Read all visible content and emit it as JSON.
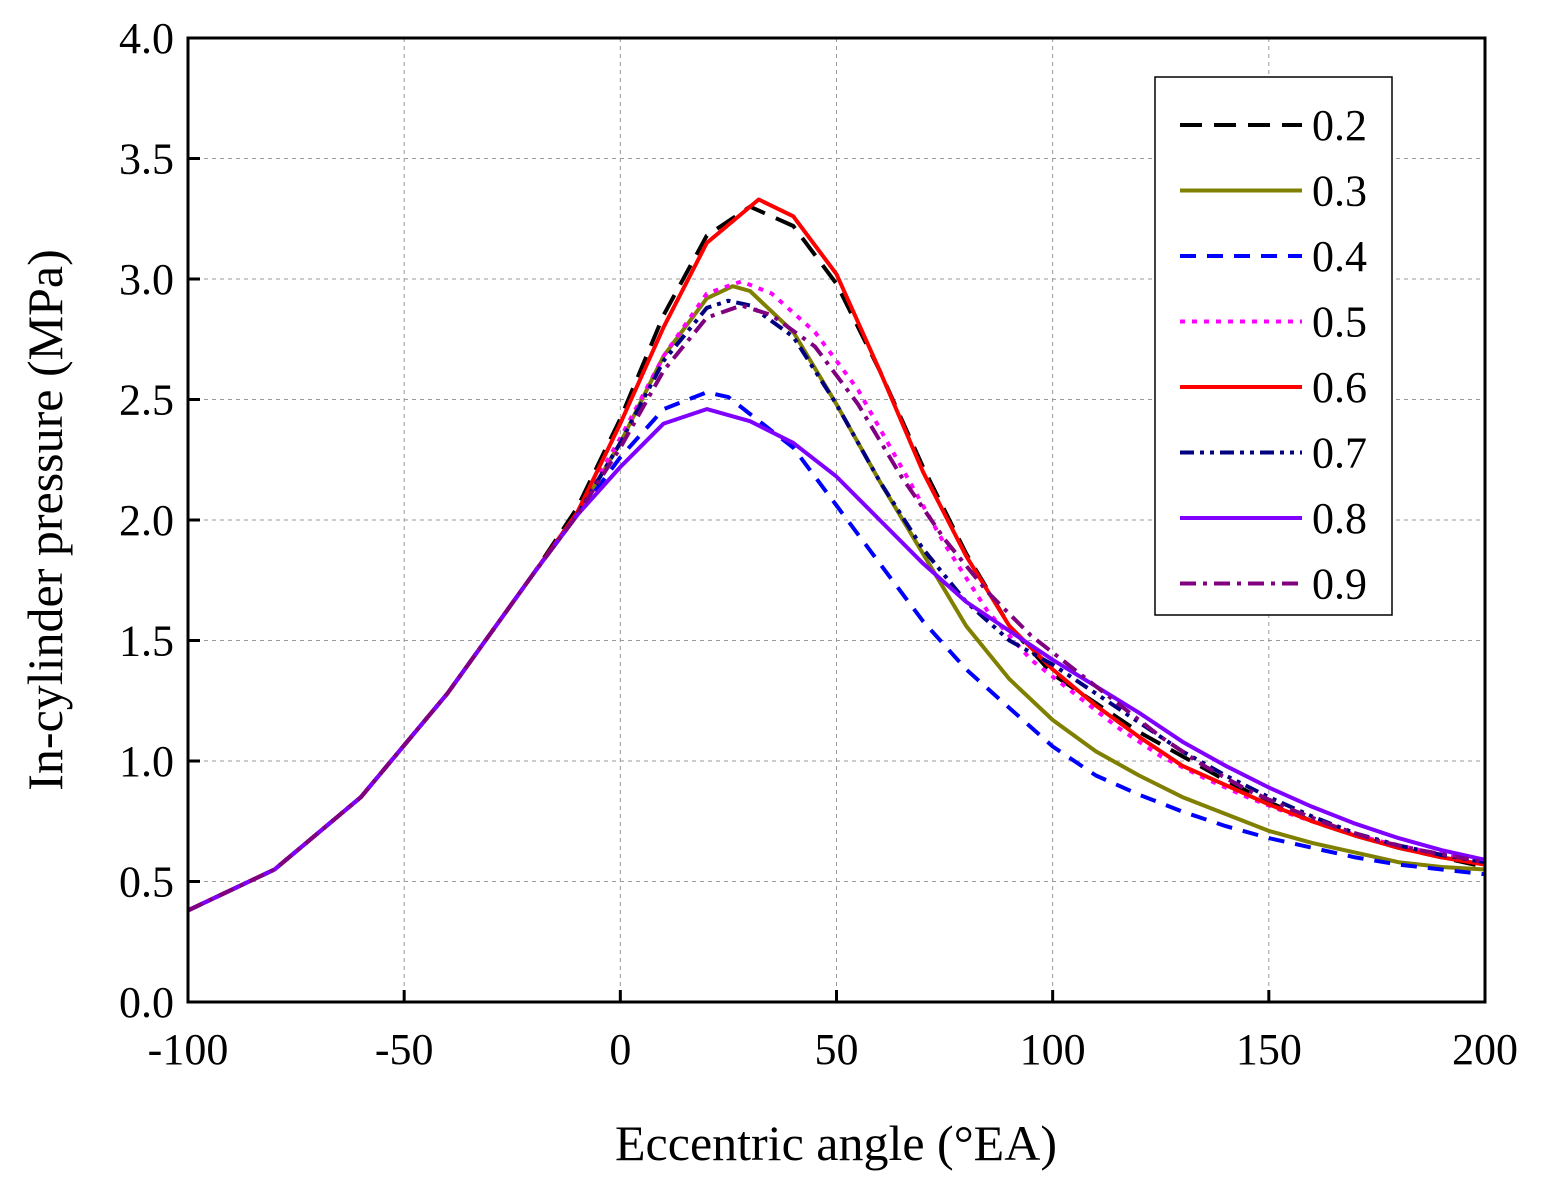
{
  "chart_data": {
    "type": "line",
    "title": "",
    "xlabel": "Eccentric angle (°EA)",
    "ylabel": "In-cylinder pressure (MPa)",
    "xlim": [
      -100,
      200
    ],
    "ylim": [
      0.0,
      4.0
    ],
    "xticks": [
      -100,
      -50,
      0,
      50,
      100,
      150,
      200
    ],
    "xtick_labels": [
      "-100",
      "-50",
      "0",
      "50",
      "100",
      "150",
      "200"
    ],
    "yticks": [
      0.0,
      0.5,
      1.0,
      1.5,
      2.0,
      2.5,
      3.0,
      3.5,
      4.0
    ],
    "ytick_labels": [
      "0.0",
      "0.5",
      "1.0",
      "1.5",
      "2.0",
      "2.5",
      "3.0",
      "3.5",
      "4.0"
    ],
    "grid": true,
    "legend_position": "top-right",
    "series": [
      {
        "name": "0.2",
        "color": "#000000",
        "dash": "long-dash",
        "points": [
          [
            -100,
            0.38
          ],
          [
            -80,
            0.55
          ],
          [
            -60,
            0.85
          ],
          [
            -40,
            1.28
          ],
          [
            -20,
            1.78
          ],
          [
            -10,
            2.05
          ],
          [
            0,
            2.42
          ],
          [
            10,
            2.85
          ],
          [
            20,
            3.18
          ],
          [
            30,
            3.3
          ],
          [
            40,
            3.22
          ],
          [
            50,
            2.98
          ],
          [
            60,
            2.62
          ],
          [
            70,
            2.22
          ],
          [
            80,
            1.86
          ],
          [
            90,
            1.56
          ],
          [
            100,
            1.36
          ],
          [
            110,
            1.24
          ],
          [
            120,
            1.12
          ],
          [
            130,
            1.02
          ],
          [
            140,
            0.92
          ],
          [
            150,
            0.83
          ],
          [
            160,
            0.75
          ],
          [
            170,
            0.69
          ],
          [
            180,
            0.64
          ],
          [
            190,
            0.6
          ],
          [
            200,
            0.56
          ]
        ]
      },
      {
        "name": "0.3",
        "color": "#808000",
        "dash": "solid",
        "points": [
          [
            -100,
            0.38
          ],
          [
            -80,
            0.55
          ],
          [
            -60,
            0.85
          ],
          [
            -40,
            1.28
          ],
          [
            -20,
            1.78
          ],
          [
            -10,
            2.02
          ],
          [
            0,
            2.32
          ],
          [
            10,
            2.68
          ],
          [
            20,
            2.92
          ],
          [
            26,
            2.97
          ],
          [
            30,
            2.95
          ],
          [
            40,
            2.78
          ],
          [
            50,
            2.48
          ],
          [
            60,
            2.16
          ],
          [
            70,
            1.86
          ],
          [
            80,
            1.56
          ],
          [
            90,
            1.34
          ],
          [
            100,
            1.17
          ],
          [
            110,
            1.04
          ],
          [
            120,
            0.94
          ],
          [
            130,
            0.85
          ],
          [
            140,
            0.78
          ],
          [
            150,
            0.71
          ],
          [
            160,
            0.66
          ],
          [
            170,
            0.62
          ],
          [
            180,
            0.58
          ],
          [
            190,
            0.56
          ],
          [
            200,
            0.55
          ]
        ]
      },
      {
        "name": "0.4",
        "color": "#0000ff",
        "dash": "dash",
        "points": [
          [
            -100,
            0.38
          ],
          [
            -80,
            0.55
          ],
          [
            -60,
            0.85
          ],
          [
            -40,
            1.28
          ],
          [
            -20,
            1.78
          ],
          [
            -10,
            2.02
          ],
          [
            0,
            2.26
          ],
          [
            10,
            2.46
          ],
          [
            20,
            2.53
          ],
          [
            25,
            2.51
          ],
          [
            30,
            2.44
          ],
          [
            40,
            2.3
          ],
          [
            50,
            2.06
          ],
          [
            60,
            1.82
          ],
          [
            70,
            1.58
          ],
          [
            80,
            1.38
          ],
          [
            90,
            1.22
          ],
          [
            100,
            1.06
          ],
          [
            110,
            0.94
          ],
          [
            120,
            0.86
          ],
          [
            130,
            0.79
          ],
          [
            140,
            0.73
          ],
          [
            150,
            0.68
          ],
          [
            160,
            0.64
          ],
          [
            170,
            0.6
          ],
          [
            180,
            0.57
          ],
          [
            190,
            0.55
          ],
          [
            200,
            0.53
          ]
        ]
      },
      {
        "name": "0.5",
        "color": "#ff00ff",
        "dash": "dot",
        "points": [
          [
            -100,
            0.38
          ],
          [
            -80,
            0.55
          ],
          [
            -60,
            0.85
          ],
          [
            -40,
            1.28
          ],
          [
            -20,
            1.78
          ],
          [
            -10,
            2.03
          ],
          [
            0,
            2.34
          ],
          [
            10,
            2.68
          ],
          [
            20,
            2.94
          ],
          [
            28,
            2.99
          ],
          [
            35,
            2.94
          ],
          [
            45,
            2.78
          ],
          [
            55,
            2.54
          ],
          [
            65,
            2.22
          ],
          [
            75,
            1.9
          ],
          [
            85,
            1.62
          ],
          [
            95,
            1.42
          ],
          [
            105,
            1.28
          ],
          [
            115,
            1.14
          ],
          [
            125,
            1.02
          ],
          [
            135,
            0.93
          ],
          [
            145,
            0.85
          ],
          [
            155,
            0.78
          ],
          [
            165,
            0.72
          ],
          [
            175,
            0.67
          ],
          [
            185,
            0.63
          ],
          [
            200,
            0.58
          ]
        ]
      },
      {
        "name": "0.6",
        "color": "#ff0000",
        "dash": "solid",
        "points": [
          [
            -100,
            0.38
          ],
          [
            -80,
            0.55
          ],
          [
            -60,
            0.85
          ],
          [
            -40,
            1.28
          ],
          [
            -20,
            1.78
          ],
          [
            -10,
            2.03
          ],
          [
            0,
            2.4
          ],
          [
            10,
            2.8
          ],
          [
            20,
            3.15
          ],
          [
            32,
            3.33
          ],
          [
            40,
            3.26
          ],
          [
            50,
            3.02
          ],
          [
            60,
            2.62
          ],
          [
            70,
            2.2
          ],
          [
            80,
            1.85
          ],
          [
            90,
            1.56
          ],
          [
            100,
            1.38
          ],
          [
            110,
            1.23
          ],
          [
            120,
            1.1
          ],
          [
            130,
            0.98
          ],
          [
            140,
            0.9
          ],
          [
            150,
            0.82
          ],
          [
            160,
            0.75
          ],
          [
            170,
            0.69
          ],
          [
            180,
            0.64
          ],
          [
            190,
            0.6
          ],
          [
            200,
            0.57
          ]
        ]
      },
      {
        "name": "0.7",
        "color": "#000080",
        "dash": "dash-dot-dot",
        "points": [
          [
            -100,
            0.38
          ],
          [
            -80,
            0.55
          ],
          [
            -60,
            0.85
          ],
          [
            -40,
            1.28
          ],
          [
            -20,
            1.78
          ],
          [
            -10,
            2.02
          ],
          [
            0,
            2.32
          ],
          [
            10,
            2.66
          ],
          [
            20,
            2.88
          ],
          [
            25,
            2.91
          ],
          [
            30,
            2.89
          ],
          [
            40,
            2.76
          ],
          [
            50,
            2.48
          ],
          [
            60,
            2.16
          ],
          [
            70,
            1.88
          ],
          [
            80,
            1.66
          ],
          [
            90,
            1.5
          ],
          [
            100,
            1.4
          ],
          [
            110,
            1.28
          ],
          [
            120,
            1.16
          ],
          [
            130,
            1.04
          ],
          [
            140,
            0.94
          ],
          [
            150,
            0.85
          ],
          [
            160,
            0.77
          ],
          [
            170,
            0.7
          ],
          [
            180,
            0.65
          ],
          [
            190,
            0.61
          ],
          [
            200,
            0.58
          ]
        ]
      },
      {
        "name": "0.8",
        "color": "#8000ff",
        "dash": "solid",
        "points": [
          [
            -100,
            0.38
          ],
          [
            -80,
            0.55
          ],
          [
            -60,
            0.85
          ],
          [
            -40,
            1.28
          ],
          [
            -20,
            1.78
          ],
          [
            -10,
            2.02
          ],
          [
            0,
            2.22
          ],
          [
            10,
            2.4
          ],
          [
            20,
            2.46
          ],
          [
            30,
            2.41
          ],
          [
            40,
            2.32
          ],
          [
            50,
            2.18
          ],
          [
            60,
            2.0
          ],
          [
            70,
            1.82
          ],
          [
            80,
            1.66
          ],
          [
            90,
            1.54
          ],
          [
            100,
            1.42
          ],
          [
            110,
            1.31
          ],
          [
            120,
            1.2
          ],
          [
            130,
            1.08
          ],
          [
            140,
            0.98
          ],
          [
            150,
            0.89
          ],
          [
            160,
            0.81
          ],
          [
            170,
            0.74
          ],
          [
            180,
            0.68
          ],
          [
            190,
            0.63
          ],
          [
            200,
            0.59
          ]
        ]
      },
      {
        "name": "0.9",
        "color": "#800080",
        "dash": "dash-dot",
        "points": [
          [
            -100,
            0.38
          ],
          [
            -80,
            0.55
          ],
          [
            -60,
            0.85
          ],
          [
            -40,
            1.28
          ],
          [
            -20,
            1.78
          ],
          [
            -10,
            2.02
          ],
          [
            0,
            2.3
          ],
          [
            10,
            2.62
          ],
          [
            20,
            2.84
          ],
          [
            28,
            2.89
          ],
          [
            35,
            2.85
          ],
          [
            45,
            2.72
          ],
          [
            55,
            2.48
          ],
          [
            65,
            2.18
          ],
          [
            75,
            1.92
          ],
          [
            85,
            1.7
          ],
          [
            95,
            1.52
          ],
          [
            105,
            1.38
          ],
          [
            115,
            1.24
          ],
          [
            125,
            1.1
          ],
          [
            135,
            0.98
          ],
          [
            145,
            0.88
          ],
          [
            155,
            0.8
          ],
          [
            165,
            0.73
          ],
          [
            175,
            0.67
          ],
          [
            185,
            0.63
          ],
          [
            200,
            0.58
          ]
        ]
      }
    ]
  }
}
